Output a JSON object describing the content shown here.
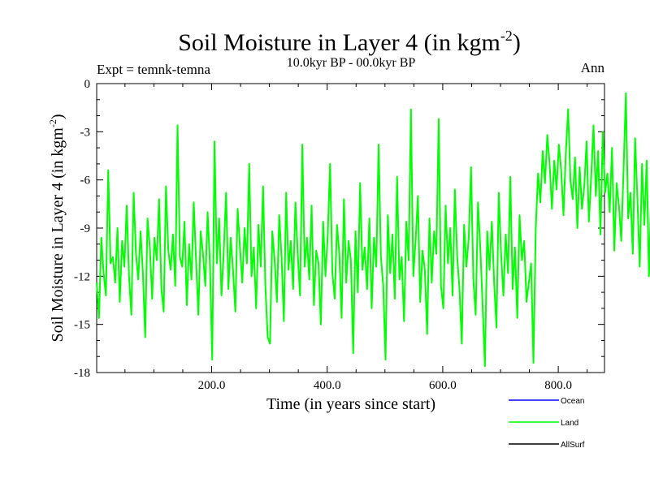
{
  "chart_data": {
    "type": "line",
    "title": "Soil Moisture in Layer 4 (in kgm",
    "title_sup": "-2",
    "title_close": ")",
    "subtitle": "10.0kyr BP - 00.0kyr BP",
    "experiment_label": "Expt = temnk-temna",
    "season_label": "Ann",
    "xlabel": "Time (in years since start)",
    "ylabel": "Soil Moisture in Layer 4 (in kgm",
    "ylabel_sup": "-2",
    "ylabel_close": ")",
    "xlim": [
      1,
      880
    ],
    "ylim": [
      -18,
      0
    ],
    "x_ticks": [
      200,
      400,
      600,
      800
    ],
    "x_tick_labels": [
      "200.0",
      "400.0",
      "600.0",
      "800.0"
    ],
    "y_ticks": [
      0,
      -3,
      -6,
      -9,
      -12,
      -15,
      -18
    ],
    "y_tick_labels": [
      "0",
      "-3",
      "-6",
      "-9",
      "-12",
      "-15",
      "-18"
    ],
    "colors": {
      "ocean": "#0000ff",
      "land": "#00ff00",
      "allsurf": "#000000"
    },
    "legend_position": "bottom-right",
    "legend": [
      {
        "name": "Ocean",
        "color": "#0000ff"
      },
      {
        "name": "Land",
        "color": "#00ff00"
      },
      {
        "name": "AllSurf",
        "color": "#000000"
      }
    ],
    "series": [
      {
        "name": "Land",
        "color": "#00ff00",
        "x_start": 1,
        "x_step": 4,
        "values": [
          -12.4,
          -14.6,
          -9.6,
          -11.8,
          -13.2,
          -5.4,
          -11.2,
          -10.8,
          -12.4,
          -9.0,
          -13.6,
          -9.8,
          -11.4,
          -7.6,
          -12.0,
          -14.4,
          -6.8,
          -10.6,
          -12.2,
          -9.2,
          -11.8,
          -15.8,
          -8.4,
          -10.2,
          -13.4,
          -9.6,
          -11.0,
          -7.2,
          -12.8,
          -14.2,
          -6.4,
          -10.4,
          -11.6,
          -9.4,
          -12.6,
          -2.6,
          -10.8,
          -11.4,
          -8.6,
          -13.8,
          -10.0,
          -12.2,
          -7.4,
          -11.0,
          -14.4,
          -9.2,
          -10.6,
          -12.6,
          -8.0,
          -11.2,
          -17.2,
          -3.6,
          -11.2,
          -8.4,
          -13.2,
          -10.4,
          -6.8,
          -12.8,
          -9.6,
          -11.6,
          -14.2,
          -7.8,
          -10.2,
          -12.4,
          -9.0,
          -11.2,
          -5.0,
          -12.0,
          -10.2,
          -14.0,
          -8.8,
          -11.4,
          -6.4,
          -12.6,
          -15.8,
          -16.2,
          -9.2,
          -11.0,
          -13.6,
          -8.2,
          -10.8,
          -14.8,
          -6.8,
          -11.6,
          -9.8,
          -12.8,
          -7.4,
          -10.6,
          -13.2,
          -3.8,
          -11.4,
          -9.6,
          -12.2,
          -7.6,
          -13.8,
          -10.4,
          -11.2,
          -15.0,
          -8.6,
          -12.0,
          -9.4,
          -5.0,
          -11.8,
          -13.4,
          -8.8,
          -10.6,
          -14.6,
          -7.2,
          -12.4,
          -9.8,
          -11.0,
          -16.8,
          -9.2,
          -13.0,
          -6.2,
          -11.6,
          -10.2,
          -12.8,
          -8.4,
          -14.0,
          -9.6,
          -11.4,
          -3.8,
          -10.8,
          -12.6,
          -17.2,
          -8.2,
          -11.8,
          -9.4,
          -13.4,
          -5.8,
          -12.2,
          -10.8,
          -14.8,
          -8.6,
          -11.0,
          -1.6,
          -12.0,
          -9.8,
          -7.0,
          -13.6,
          -10.4,
          -11.6,
          -15.6,
          -8.4,
          -12.4,
          -9.2,
          -10.6,
          -2.2,
          -12.6,
          -14.0,
          -7.6,
          -11.2,
          -9.0,
          -13.2,
          -6.6,
          -10.8,
          -12.8,
          -16.2,
          -8.8,
          -11.4,
          -9.6,
          -5.2,
          -12.2,
          -14.4,
          -7.4,
          -10.2,
          -13.8,
          -17.6,
          -9.2,
          -11.6,
          -8.6,
          -12.4,
          -15.2,
          -6.8,
          -10.6,
          -13.2,
          -9.4,
          -11.8,
          -5.8,
          -12.8,
          -10.2,
          -14.6,
          -8.2,
          -11.0,
          -9.8,
          -13.6,
          -12.4,
          -11.2,
          -17.4,
          -9.0,
          -5.6,
          -7.4,
          -4.2,
          -6.2,
          -3.2,
          -5.0,
          -7.8,
          -4.8,
          -6.6,
          -3.8,
          -5.4,
          -8.2,
          -4.4,
          -1.6,
          -6.0,
          -7.2,
          -4.6,
          -9.0,
          -5.2,
          -7.8,
          -6.4,
          -3.6,
          -8.6,
          -5.8,
          -2.6,
          -7.0,
          -4.2,
          -9.4,
          -3.0,
          -6.8,
          -5.6,
          -8.0,
          -4.0,
          -10.4,
          -6.2,
          -7.6,
          -9.8,
          -5.4,
          -0.6,
          -8.4,
          -6.8,
          -10.6,
          -3.4,
          -7.2,
          -11.4,
          -5.0,
          -8.8,
          -4.8,
          -12.0,
          -6.6,
          -9.6,
          -16.4,
          -10.4,
          -5.8,
          -12.4,
          -9.2,
          -14.2,
          -7.4,
          -11.8,
          -15.4,
          -8.8,
          -10.6,
          -13.6,
          -6.0,
          -11.2,
          -14.8,
          -9.8,
          -12.6,
          -8.4,
          -10.8,
          -17.0,
          -9.4,
          -12.2,
          -6.8,
          -13.8,
          -10.2,
          -11.6,
          -8.0,
          -14.6,
          -9.6,
          -3.6,
          -11.4,
          -13.0,
          -8.6,
          -10.4,
          -16.0,
          -7.2,
          -12.8,
          -9.2,
          -11.8,
          -14.4,
          -10.6,
          -8.2,
          -12.4,
          -15.2,
          -9.8,
          -11.0,
          -6.4,
          -13.4,
          -10.0,
          -12.6,
          -8.8,
          -14.0,
          -11.4,
          -9.4,
          -12.2,
          -7.6,
          -10.8,
          -13.2,
          -5.4,
          -11.6,
          -17.4,
          -9.0,
          -12.0,
          -10.4,
          -14.8,
          -8.4,
          -11.2,
          -6.2,
          -12.8,
          -9.6,
          -10.6,
          -13.8,
          -2.8,
          -11.8,
          -9.2,
          -16.8,
          -10.2,
          -12.4,
          -8.0,
          -13.6,
          -11.0,
          -9.8,
          -14.2,
          -7.0,
          -12.2,
          -10.6,
          -11.6,
          -15.6,
          -8.8,
          -12.6,
          -5.8,
          -10.4,
          -13.0,
          -9.4,
          -11.4,
          -1.6,
          -12.0,
          -10.2,
          -14.4,
          -8.2,
          -11.8,
          -16.2,
          -9.6,
          -12.8,
          -7.4,
          -10.8,
          -13.4,
          -9.0,
          -11.2,
          -6.0,
          -12.4,
          -14.0,
          -10.4,
          -12.2
        ]
      }
    ]
  }
}
